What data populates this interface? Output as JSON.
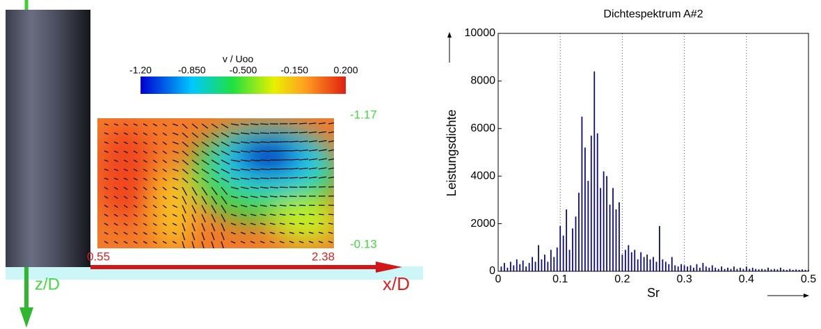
{
  "flow_field": {
    "colorbar": {
      "label": "v / Uoo",
      "clim": [
        -1.2,
        0.2
      ],
      "ticks": [
        {
          "value": -1.2,
          "label": "-1.20"
        },
        {
          "value": -0.85,
          "label": "-0.850"
        },
        {
          "value": -0.5,
          "label": "-0.500"
        },
        {
          "value": -0.15,
          "label": "-0.150"
        },
        {
          "value": 0.2,
          "label": "0.200"
        }
      ]
    },
    "x_start": 0.55,
    "x_end": 2.38,
    "z_top": -1.17,
    "z_bottom": -0.13,
    "x_axis_label": "x/D",
    "z_axis_label": "z/D"
  },
  "chart_data": {
    "type": "bar",
    "title": "Dichtespektrum A#2",
    "x_label": "Sr",
    "y_label": "Leistungsdichte",
    "color": "#0a0a8a",
    "grid": true,
    "xlim": [
      0,
      0.5
    ],
    "ylim": [
      0,
      10000
    ],
    "xticks": [
      0,
      0.1,
      0.2,
      0.3,
      0.4,
      0.5
    ],
    "yticks": [
      0,
      2000,
      4000,
      6000,
      8000,
      10000
    ],
    "x": [
      0.005,
      0.01,
      0.015,
      0.02,
      0.025,
      0.03,
      0.035,
      0.04,
      0.045,
      0.05,
      0.055,
      0.06,
      0.065,
      0.07,
      0.075,
      0.08,
      0.085,
      0.09,
      0.095,
      0.1,
      0.105,
      0.11,
      0.115,
      0.12,
      0.125,
      0.13,
      0.135,
      0.14,
      0.145,
      0.15,
      0.155,
      0.16,
      0.165,
      0.17,
      0.175,
      0.18,
      0.185,
      0.19,
      0.195,
      0.2,
      0.205,
      0.21,
      0.215,
      0.22,
      0.225,
      0.23,
      0.235,
      0.24,
      0.245,
      0.25,
      0.255,
      0.26,
      0.265,
      0.27,
      0.275,
      0.28,
      0.285,
      0.29,
      0.295,
      0.3,
      0.305,
      0.31,
      0.315,
      0.32,
      0.325,
      0.33,
      0.335,
      0.34,
      0.345,
      0.35,
      0.355,
      0.36,
      0.365,
      0.37,
      0.375,
      0.38,
      0.385,
      0.39,
      0.395,
      0.4,
      0.405,
      0.41,
      0.415,
      0.42,
      0.425,
      0.43,
      0.435,
      0.44,
      0.445,
      0.45,
      0.455,
      0.46,
      0.465,
      0.47,
      0.475,
      0.48,
      0.485,
      0.49,
      0.495,
      0.5
    ],
    "values": [
      200,
      350,
      150,
      400,
      250,
      500,
      300,
      450,
      200,
      350,
      600,
      400,
      1100,
      500,
      700,
      400,
      900,
      600,
      1000,
      1900,
      1500,
      2600,
      900,
      1800,
      2300,
      3300,
      6500,
      5200,
      3800,
      5700,
      8400,
      5800,
      3500,
      4200,
      4000,
      2800,
      3500,
      2600,
      2900,
      700,
      900,
      1100,
      800,
      900,
      500,
      800,
      600,
      700,
      500,
      600,
      400,
      1900,
      500,
      400,
      300,
      600,
      250,
      200,
      300,
      250,
      200,
      250,
      150,
      300,
      150,
      350,
      200,
      150,
      250,
      150,
      100,
      200,
      100,
      150,
      100,
      200,
      100,
      150,
      100,
      200,
      100,
      150,
      100,
      80,
      100,
      80,
      150,
      80,
      100,
      80,
      150,
      80,
      60,
      100,
      60,
      80,
      60,
      80,
      60,
      50
    ]
  }
}
